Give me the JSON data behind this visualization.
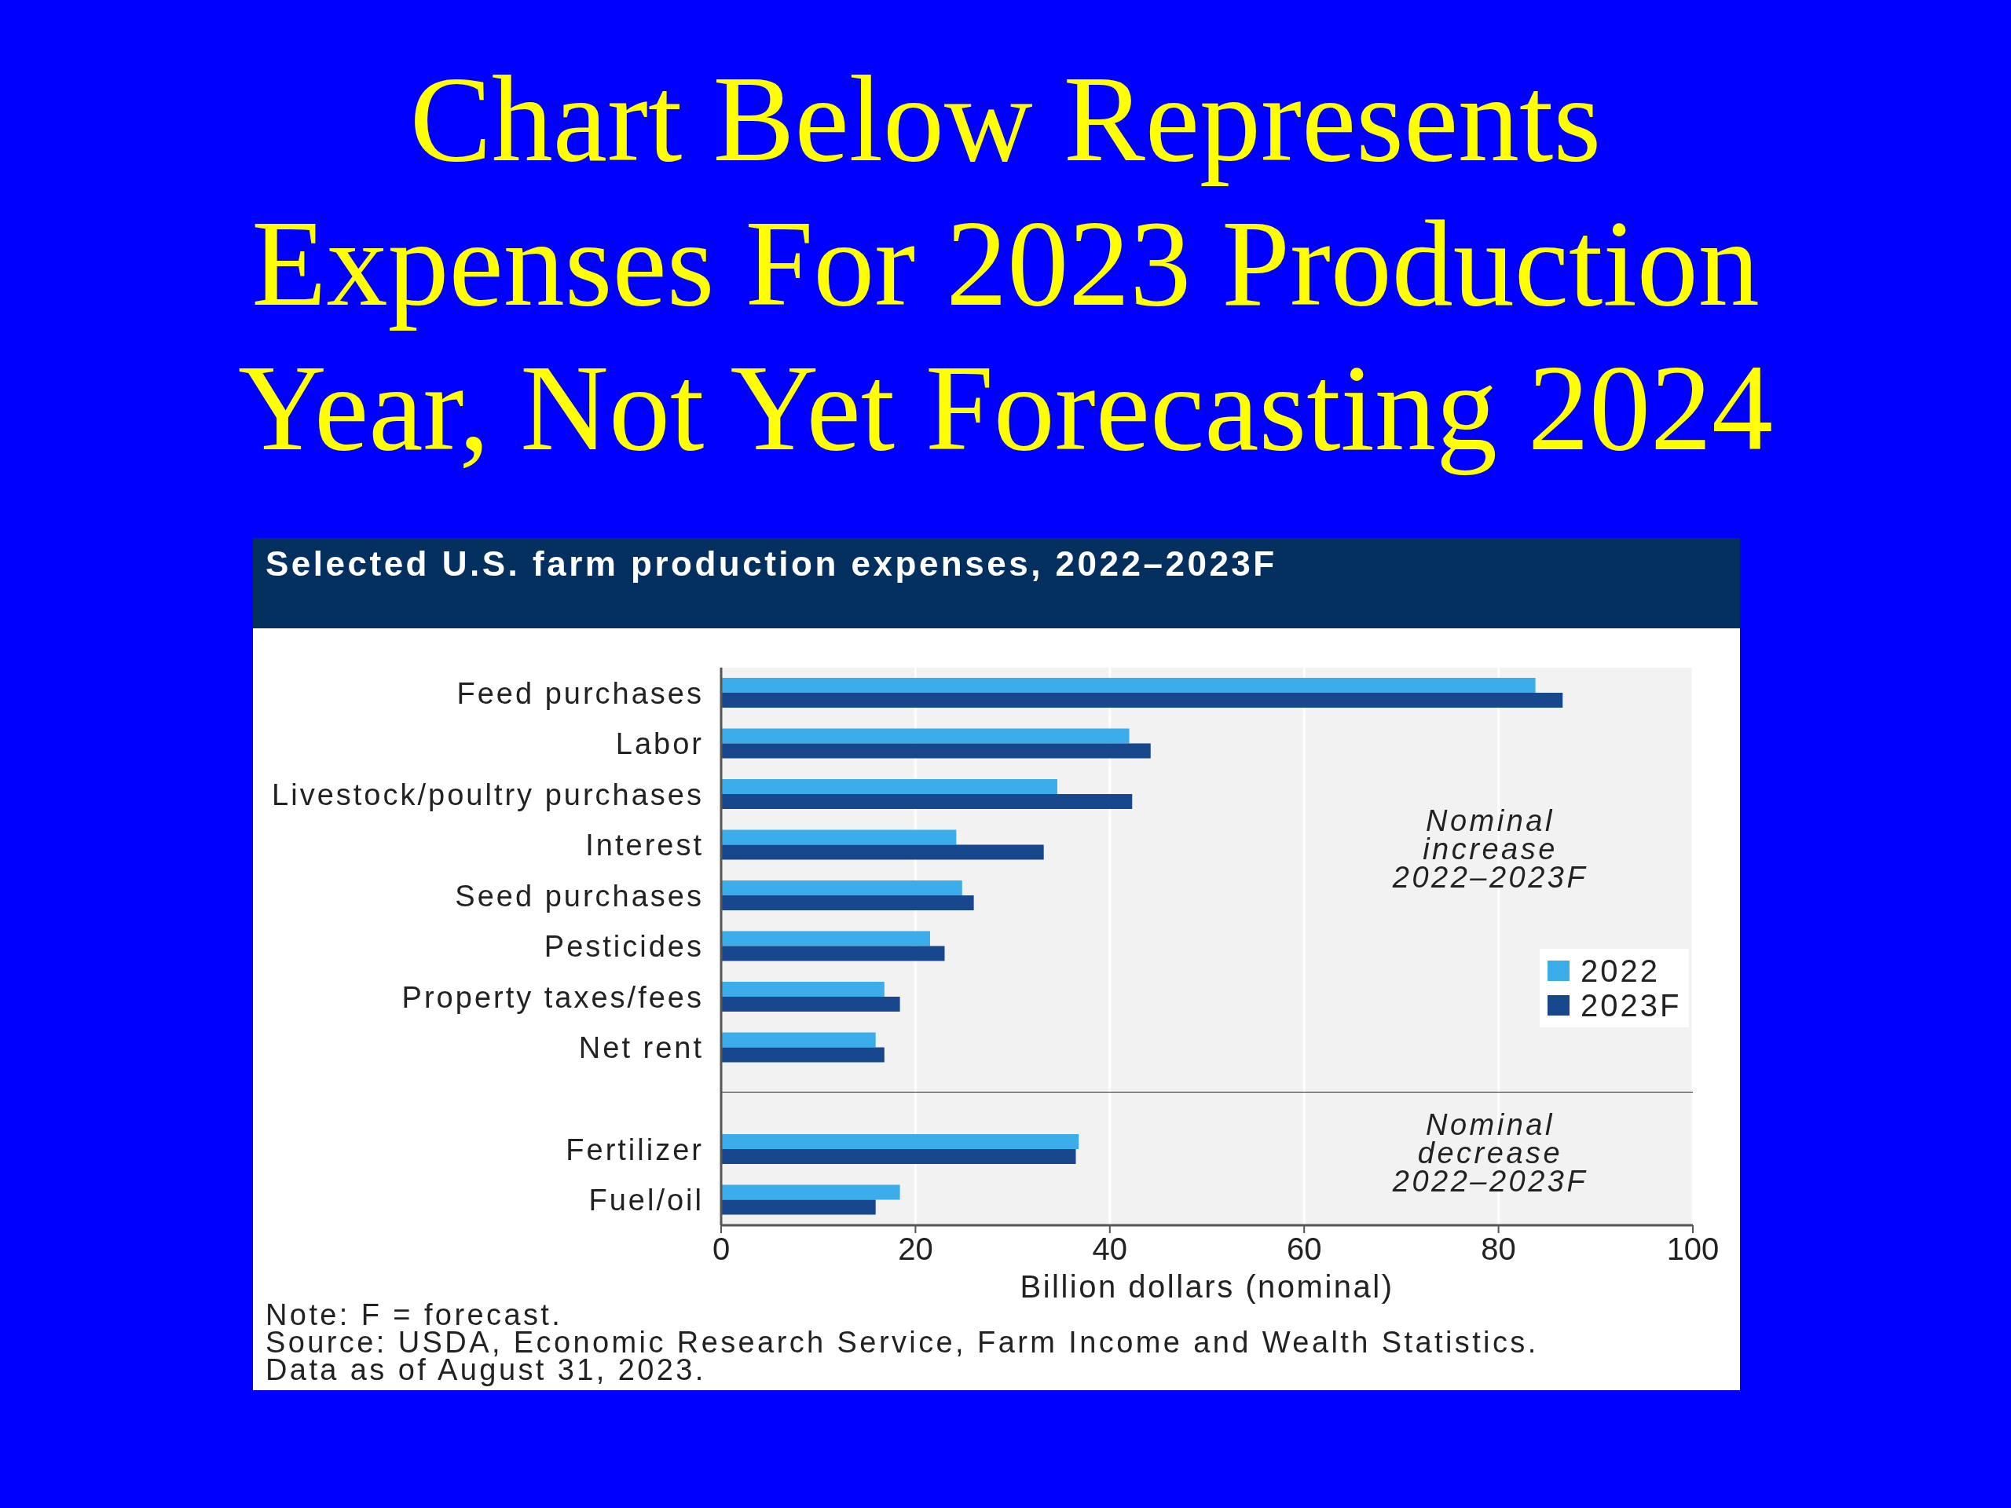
{
  "chart_data": [
    {
      "type": "bar",
      "orientation": "horizontal",
      "title": "Chart Below Represents Expenses For 2023 Production Year, Not Yet Forecasting 2024",
      "subtitle": "Selected U.S. farm production expenses, 2022–2023F",
      "categories": [
        "Feed purchases",
        "Labor",
        "Livestock/poultry purchases",
        "Interest",
        "Seed purchases",
        "Pesticides",
        "Property taxes/fees",
        "Net rent"
      ],
      "series": [
        {
          "name": "2022",
          "color": "#3aadea",
          "values": [
            83.8,
            42.0,
            34.6,
            24.2,
            24.8,
            21.5,
            16.8,
            15.9
          ]
        },
        {
          "name": "2023F",
          "color": "#17478c",
          "values": [
            86.6,
            44.2,
            42.3,
            33.2,
            26.0,
            23.0,
            18.4,
            16.8
          ]
        }
      ],
      "xlim": [
        0,
        100
      ],
      "xticks": [
        0,
        20,
        40,
        60,
        80,
        100
      ],
      "tick_labels": "y",
      "grid": "x",
      "legend": "right",
      "annotations": [
        "Nominal\nincrease\n2022–2023F"
      ]
    },
    {
      "type": "bar",
      "orientation": "horizontal",
      "xlabel": "Billion dollars (nominal)",
      "categories": [
        "Fertilizer",
        "Fuel/oil"
      ],
      "series": [
        {
          "color": "#3aadea",
          "values": [
            36.8,
            18.4
          ]
        },
        {
          "color": "#17478c",
          "values": [
            36.5,
            15.9
          ]
        }
      ],
      "xlim": [
        0,
        100
      ],
      "xticks": [
        0,
        20,
        40,
        60,
        80,
        100
      ],
      "grid": "x",
      "annotations": [
        "Nominal\ndecrease\n2022–2023F",
        "Note: F = forecast.",
        "Source: USDA, Economic Research Service, Farm Income and Wealth Statistics.",
        "Data as of August 31, 2023."
      ]
    }
  ]
}
